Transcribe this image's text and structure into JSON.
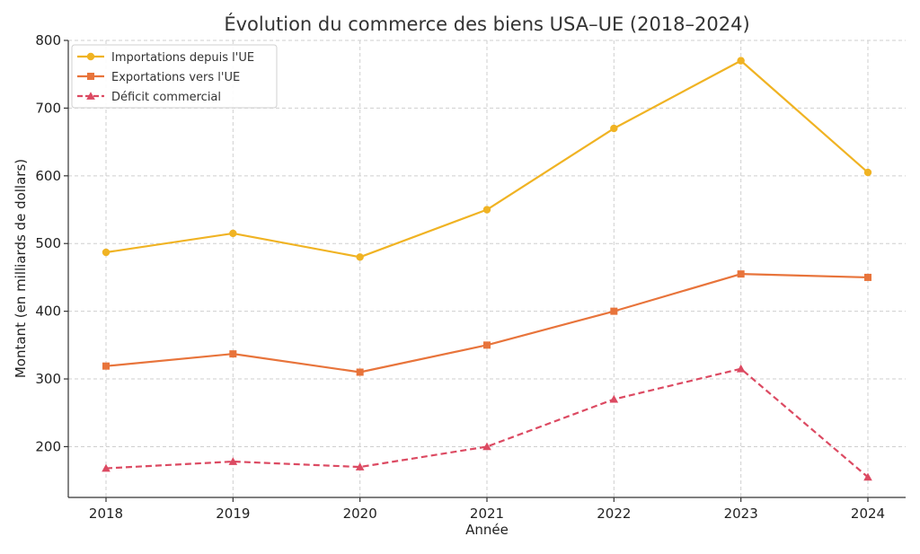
{
  "chart_data": {
    "type": "line",
    "title": "Évolution du commerce des biens USA–UE (2018–2024)",
    "xlabel": "Année",
    "ylabel": "Montant (en milliards de dollars)",
    "categories": [
      "2018",
      "2019",
      "2020",
      "2021",
      "2022",
      "2023",
      "2024"
    ],
    "ylim": [
      125,
      800
    ],
    "yticks": [
      200,
      300,
      400,
      500,
      600,
      700,
      800
    ],
    "grid": true,
    "legend_position": "top-left",
    "series": [
      {
        "name": "Importations depuis l'UE",
        "values": [
          487,
          515,
          480,
          550,
          670,
          770,
          605
        ],
        "color": "#f0b323",
        "marker": "circle",
        "dash": "solid"
      },
      {
        "name": "Exportations vers l'UE",
        "values": [
          319,
          337,
          310,
          350,
          400,
          455,
          450
        ],
        "color": "#e8743b",
        "marker": "square",
        "dash": "solid"
      },
      {
        "name": "Déficit commercial",
        "values": [
          168,
          178,
          170,
          200,
          270,
          315,
          155
        ],
        "color": "#dc4a62",
        "marker": "triangle",
        "dash": "dashed"
      }
    ]
  }
}
